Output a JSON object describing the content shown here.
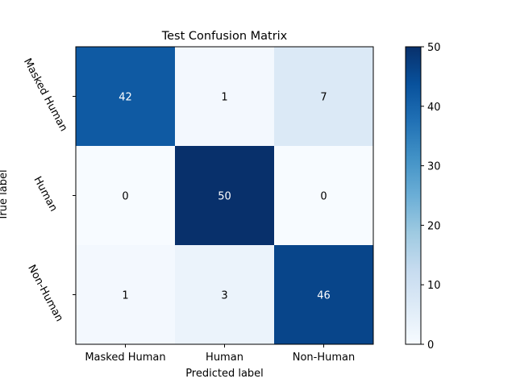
{
  "chart_data": {
    "type": "heatmap",
    "title": "Test Confusion Matrix",
    "xlabel": "Predicted label",
    "ylabel": "True label",
    "x_categories": [
      "Masked Human",
      "Human",
      "Non-Human"
    ],
    "y_categories": [
      "Masked Human",
      "Human",
      "Non-Human"
    ],
    "values": [
      [
        42,
        1,
        7
      ],
      [
        0,
        50,
        0
      ],
      [
        1,
        3,
        46
      ]
    ],
    "colormap": "Blues",
    "color_range": [
      0,
      50
    ],
    "colorbar_ticks": [
      "0",
      "10",
      "20",
      "30",
      "40",
      "50"
    ],
    "grid": false
  }
}
